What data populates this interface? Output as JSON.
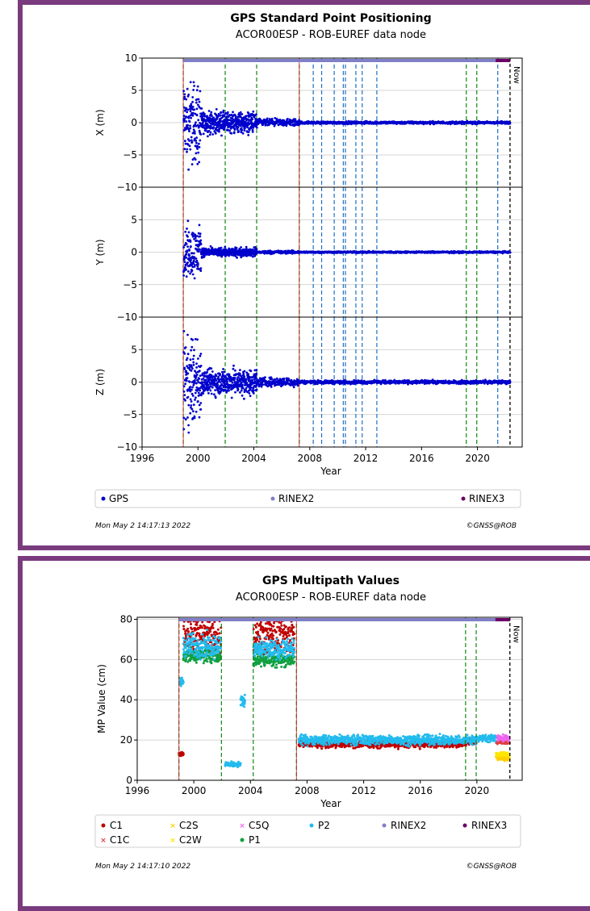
{
  "chart_data": [
    {
      "type": "scatter",
      "title": "GPS Standard Point Positioning",
      "subtitle": "ACOR00ESP - ROB-EUREF data node",
      "xlabel": "Year",
      "xlim": [
        1996,
        2023.2
      ],
      "xticks": [
        1996,
        2000,
        2004,
        2008,
        2012,
        2016,
        2020
      ],
      "now_label": "Now",
      "now_x": 2022.33,
      "rinex2_span": [
        1998.95,
        2021.3
      ],
      "rinex3_span": [
        2021.3,
        2022.33
      ],
      "green_lines": [
        1998.95,
        2001.95,
        2004.2,
        2007.25,
        2019.2,
        2019.95
      ],
      "red_lines": [
        1998.95,
        2007.25
      ],
      "blue_lines": [
        2008.25,
        2008.85,
        2009.75,
        2010.4,
        2010.55,
        2011.3,
        2011.75,
        2012.8,
        2021.45
      ],
      "subplots": [
        {
          "ylabel": "X (m)",
          "ylim": [
            -10,
            10
          ],
          "yticks": [
            -10,
            -5,
            0,
            5,
            10
          ],
          "ytick_labels": [
            "−10",
            "−5",
            "0",
            "5",
            "10"
          ],
          "scatter_until": 2000.2,
          "early_spread": 10,
          "mid_spread": 2.5,
          "tail_spread": 0.3
        },
        {
          "ylabel": "Y (m)",
          "ylim": [
            -10,
            10
          ],
          "yticks": [
            -10,
            -5,
            0,
            5,
            10
          ],
          "ytick_labels": [
            "−10",
            "−5",
            "0",
            "5",
            ""
          ],
          "scatter_until": 2000.2,
          "early_spread": 6,
          "mid_spread": 1,
          "tail_spread": 0.2
        },
        {
          "ylabel": "Z (m)",
          "ylim": [
            -10,
            10
          ],
          "yticks": [
            -10,
            -5,
            0,
            5,
            10
          ],
          "ytick_labels": [
            "−10",
            "−5",
            "0",
            "5",
            ""
          ],
          "scatter_until": 2000.2,
          "early_spread": 10,
          "mid_spread": 3,
          "tail_spread": 0.4
        }
      ],
      "legend": [
        {
          "label": "GPS",
          "color": "#0000cc"
        },
        {
          "label": "RINEX2",
          "color": "#8080c8"
        },
        {
          "label": "RINEX3",
          "color": "#6a0066"
        }
      ],
      "footer_left": "Mon May  2 14:17:13 2022",
      "footer_right": "©GNSS@ROB"
    },
    {
      "type": "scatter",
      "title": "GPS Multipath Values",
      "subtitle": "ACOR00ESP - ROB-EUREF data node",
      "xlabel": "Year",
      "ylabel": "MP Value (cm)",
      "xlim": [
        1996,
        2023.2
      ],
      "ylim": [
        0,
        81
      ],
      "xticks": [
        1996,
        2000,
        2004,
        2008,
        2012,
        2016,
        2020
      ],
      "yticks": [
        0,
        20,
        40,
        60,
        80
      ],
      "now_label": "Now",
      "now_x": 2022.33,
      "green_lines": [
        1998.95,
        2001.95,
        2004.2,
        2007.25,
        2019.2,
        2019.95
      ],
      "red_lines": [
        1998.95,
        2007.25
      ],
      "series": [
        {
          "name": "C1",
          "color": "#c00000",
          "segments": [
            [
              1998.95,
              1999.25,
              13,
              1
            ],
            [
              1999.25,
              2001.2,
              72,
              8
            ],
            [
              2001.2,
              2001.9,
              70,
              10
            ],
            [
              2004.2,
              2007.1,
              72,
              8
            ],
            [
              2007.4,
              2019.0,
              18,
              1.5
            ],
            [
              2019.0,
              2019.95,
              19,
              1.5
            ]
          ]
        },
        {
          "name": "C1C",
          "color": "#e04040",
          "segments": [
            [
              2021.35,
              2022.3,
              19,
              0.8
            ]
          ]
        },
        {
          "name": "C2S",
          "color": "#ffd000",
          "segments": [
            [
              2021.35,
              2022.3,
              11,
              1
            ]
          ]
        },
        {
          "name": "C2W",
          "color": "#ffe600",
          "segments": [
            [
              2021.35,
              2022.3,
              13,
              1
            ]
          ]
        },
        {
          "name": "C5Q",
          "color": "#ee66ee",
          "segments": [
            [
              2021.35,
              2022.3,
              21,
              1.5
            ]
          ]
        },
        {
          "name": "P1",
          "color": "#10a040",
          "segments": [
            [
              1999.25,
              2001.9,
              62,
              3
            ],
            [
              2004.2,
              2007.1,
              60,
              3
            ]
          ]
        },
        {
          "name": "P2",
          "color": "#22bbee",
          "segments": [
            [
              1998.95,
              1999.25,
              49,
              2
            ],
            [
              1999.25,
              2001.9,
              67,
              5
            ],
            [
              2002.2,
              2003.3,
              8,
              1
            ],
            [
              2003.3,
              2003.6,
              39,
              3
            ],
            [
              2004.2,
              2007.1,
              65,
              4
            ],
            [
              2007.4,
              2019.95,
              20,
              2
            ],
            [
              2019.95,
              2021.3,
              21,
              1.5
            ]
          ]
        }
      ],
      "legend": [
        {
          "label": "C1",
          "color": "#c00000",
          "marker": "dot"
        },
        {
          "label": "C2S",
          "color": "#ffd000",
          "marker": "x"
        },
        {
          "label": "C5Q",
          "color": "#ee66ee",
          "marker": "x"
        },
        {
          "label": "P2",
          "color": "#22bbee",
          "marker": "dot"
        },
        {
          "label": "RINEX2",
          "color": "#8080c8",
          "marker": "dot"
        },
        {
          "label": "RINEX3",
          "color": "#6a0066",
          "marker": "dot"
        },
        {
          "label": "C1C",
          "color": "#e04040",
          "marker": "x"
        },
        {
          "label": "C2W",
          "color": "#ffe600",
          "marker": "x"
        },
        {
          "label": "P1",
          "color": "#10a040",
          "marker": "dot"
        }
      ],
      "footer_left": "Mon May  2 14:17:10 2022",
      "footer_right": "©GNSS@ROB"
    }
  ]
}
